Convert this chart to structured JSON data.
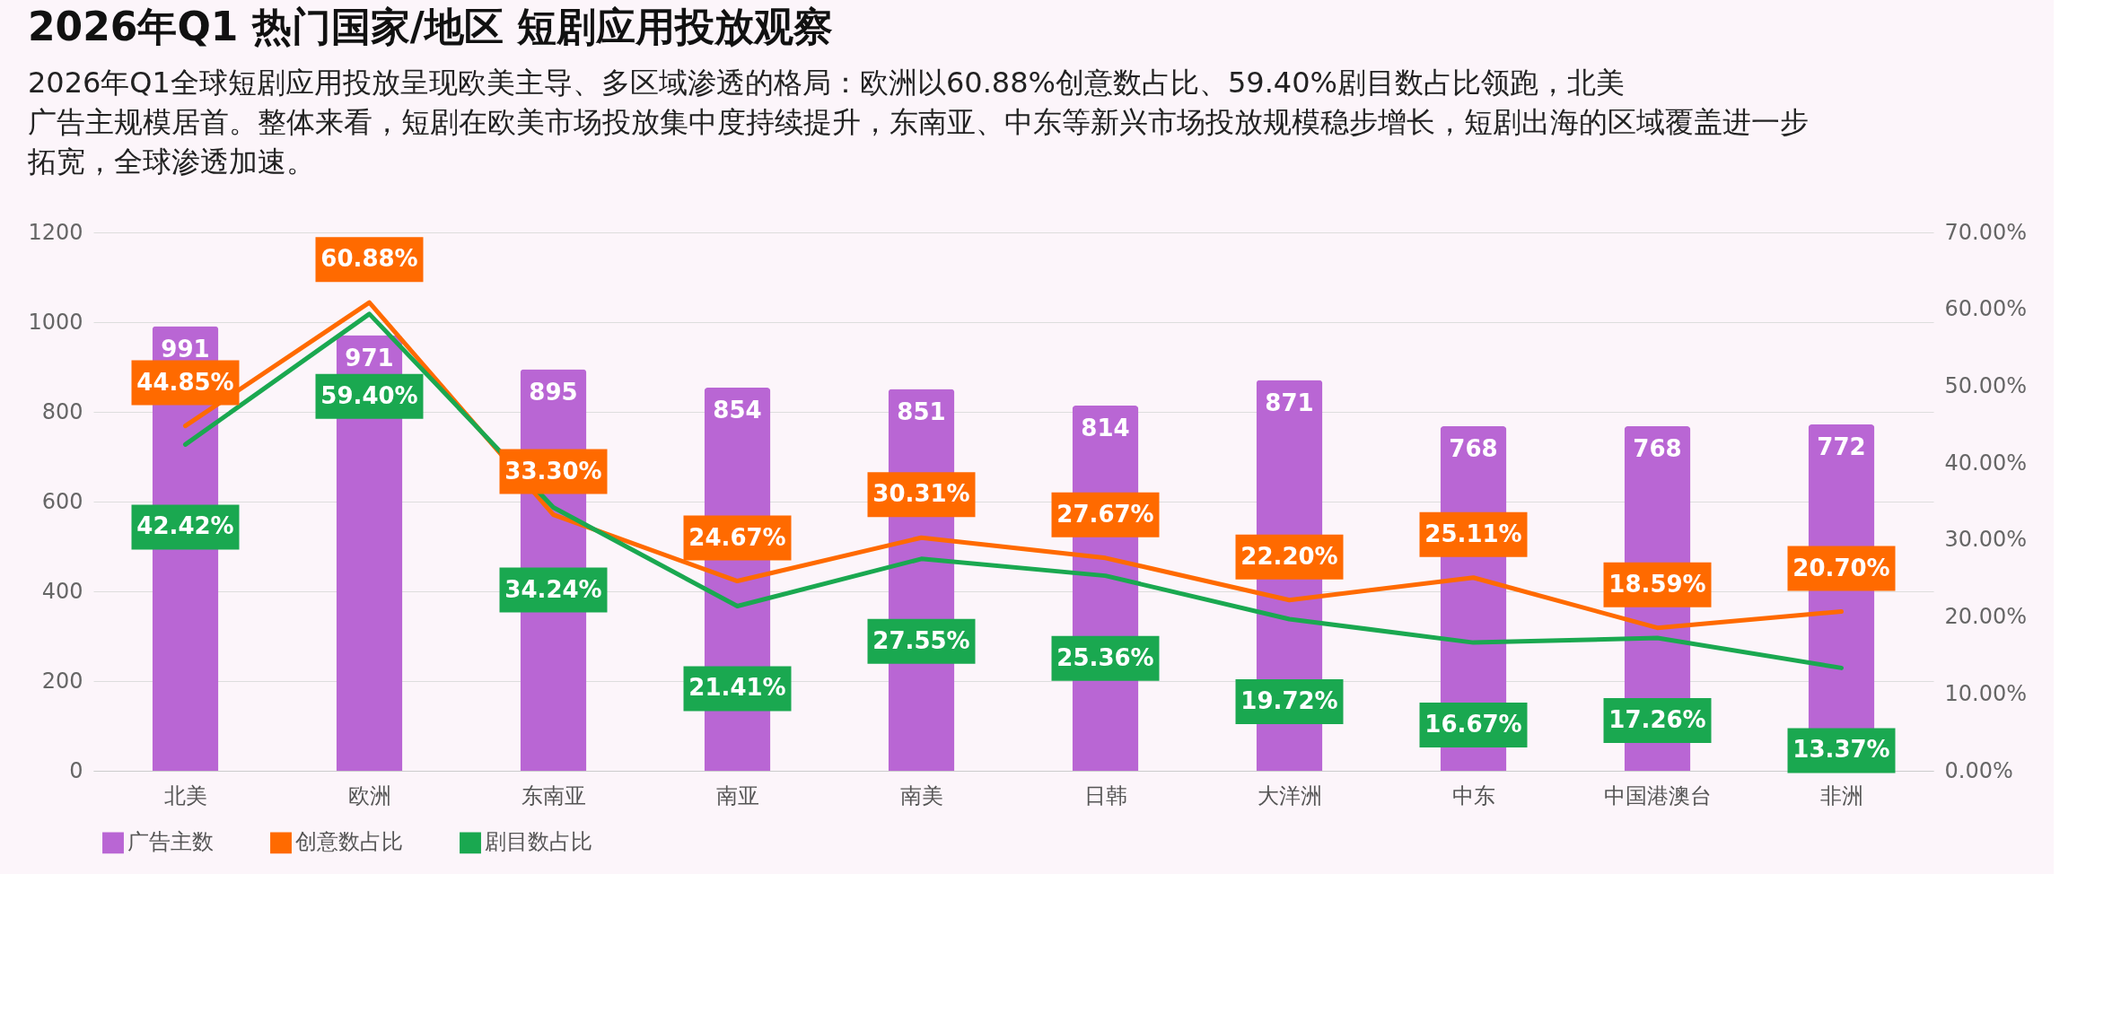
{
  "chart_data": {
    "type": "line",
    "title": "2026年Q1 热门国家/地区 短剧应用投放观察",
    "subtitle": "2026年Q1全球短剧应用投放呈现欧美主导、多区域渗透的格局：欧洲以60.88%创意数占比、59.40%剧目数占比领跑，北美广告主规模居首。整体来看，短剧在欧美市场投放集中度持续提升，东南亚、中东等新兴市场投放规模稳步增长，短剧出海的区域覆盖进一步拓宽，全球渗透加速。",
    "categories": [
      "北美",
      "欧洲",
      "东南亚",
      "南亚",
      "南美",
      "日韩",
      "大洋洲",
      "中东",
      "中国港澳台",
      "非洲"
    ],
    "series": [
      {
        "name": "广告主数",
        "type": "bar",
        "color": "#b966d4",
        "values": [
          991,
          971,
          895,
          854,
          851,
          814,
          871,
          768,
          768,
          772
        ],
        "value_labels": [
          "991",
          "971",
          "895",
          "854",
          "851",
          "814",
          "871",
          "768",
          "768",
          "772"
        ]
      },
      {
        "name": "创意数占比",
        "axis": "y2",
        "color": "#ff6a00",
        "values": [
          44.85,
          60.88,
          33.3,
          24.67,
          30.31,
          27.67,
          22.2,
          25.11,
          18.59,
          20.7
        ],
        "value_labels": [
          "44.85%",
          "60.88%",
          "33.30%",
          "24.67%",
          "30.31%",
          "27.67%",
          "22.20%",
          "25.11%",
          "18.59%",
          "20.70%"
        ]
      },
      {
        "name": "剧目数占比",
        "axis": "y2",
        "color": "#1aa850",
        "values": [
          42.42,
          59.4,
          34.24,
          21.41,
          27.55,
          25.36,
          19.72,
          16.67,
          17.26,
          13.37
        ],
        "value_labels": [
          "42.42%",
          "59.40%",
          "34.24%",
          "21.41%",
          "27.55%",
          "25.36%",
          "19.72%",
          "16.67%",
          "17.26%",
          "13.37%"
        ]
      }
    ],
    "ylim": [
      0,
      1200
    ],
    "yticks": [
      0,
      200,
      400,
      600,
      800,
      1000,
      1200
    ],
    "y2lim": [
      0,
      70
    ],
    "y2ticks": [
      {
        "value": 0,
        "label": "0.00%"
      },
      {
        "value": 10,
        "label": "10.00%"
      },
      {
        "value": 20,
        "label": "20.00%"
      },
      {
        "value": 30,
        "label": "30.00%"
      },
      {
        "value": 40,
        "label": "40.00%"
      },
      {
        "value": 50,
        "label": "50.00%"
      },
      {
        "value": 60,
        "label": "60.00%"
      },
      {
        "value": 70,
        "label": "70.00%"
      }
    ],
    "grid": "y",
    "legend": "bottom",
    "marker": "none",
    "line_style": "solid"
  }
}
